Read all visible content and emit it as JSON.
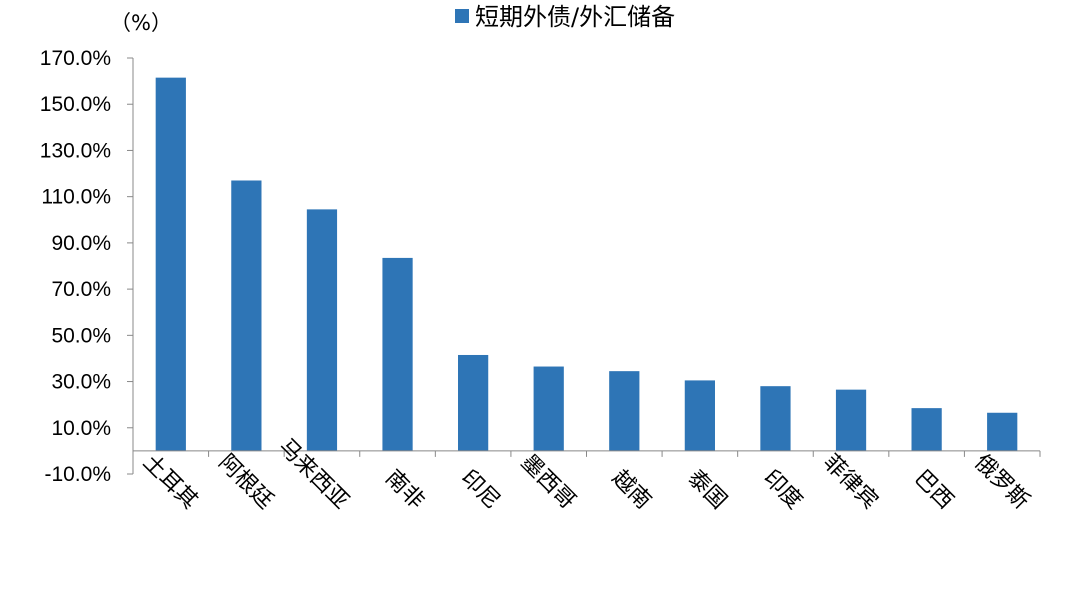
{
  "chart_data": {
    "type": "bar",
    "unit_label": "（%）",
    "legend": {
      "label": "短期外债/外汇储备",
      "color": "#2E75B6",
      "placement": "top"
    },
    "categories": [
      "土耳其",
      "阿根廷",
      "马来西亚",
      "南非",
      "印尼",
      "墨西哥",
      "越南",
      "泰国",
      "印度",
      "菲律宾",
      "巴西",
      "俄罗斯"
    ],
    "series": [
      {
        "name": "短期外债/外汇储备",
        "values": [
          161.5,
          117.0,
          104.5,
          83.5,
          41.5,
          36.5,
          34.5,
          30.5,
          28.0,
          26.5,
          18.5,
          16.5
        ]
      }
    ],
    "yticks": [
      "170.0%",
      "150.0%",
      "130.0%",
      "110.0%",
      "90.0%",
      "70.0%",
      "50.0%",
      "30.0%",
      "10.0%",
      "-10.0%"
    ],
    "ylim": [
      -10,
      170
    ],
    "ytick_values": [
      170,
      150,
      130,
      110,
      90,
      70,
      50,
      30,
      10,
      -10
    ],
    "baseline": 0,
    "grid": false,
    "bar_color": "#2E75B6"
  }
}
